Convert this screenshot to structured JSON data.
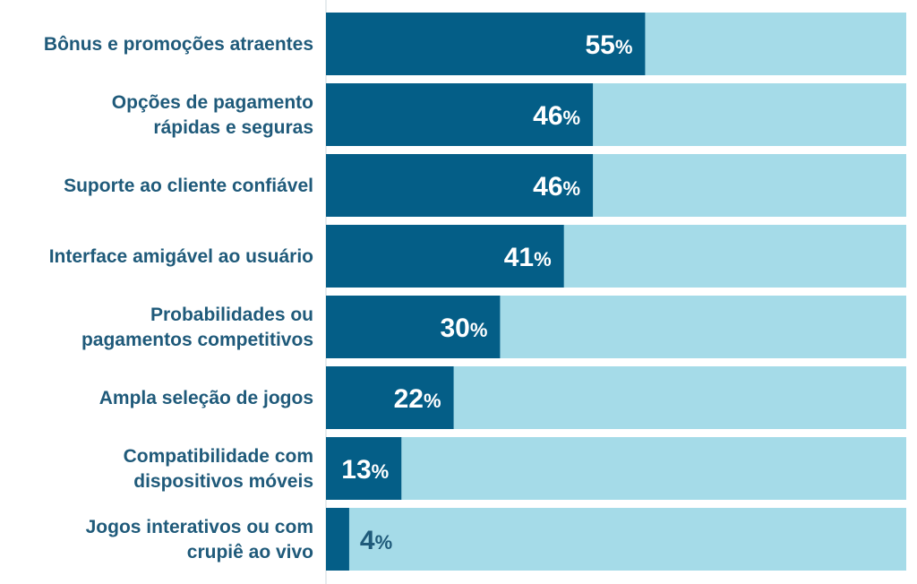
{
  "chart_data": {
    "type": "bar",
    "orientation": "horizontal",
    "stacked_with_remainder": true,
    "xlim": [
      0,
      100
    ],
    "categories": [
      [
        "Bônus e promoções atraentes"
      ],
      [
        "Opções de pagamento",
        "rápidas e seguras"
      ],
      [
        "Suporte ao cliente confiável"
      ],
      [
        "Interface amigável ao usuário"
      ],
      [
        "Probabilidades ou",
        "pagamentos competitivos"
      ],
      [
        "Ampla seleção de jogos"
      ],
      [
        "Compatibilidade com",
        "dispositivos móveis"
      ],
      [
        "Jogos interativos ou com",
        "crupiê ao vivo"
      ]
    ],
    "values": [
      55,
      46,
      46,
      41,
      30,
      22,
      13,
      4
    ],
    "value_suffix": "%",
    "colors": {
      "bar": "#045e87",
      "remainder": "#a5dbe8",
      "label": "#1f5a7a",
      "value_text_inside": "#ffffff",
      "value_text_outside": "#1f5a7a"
    }
  }
}
